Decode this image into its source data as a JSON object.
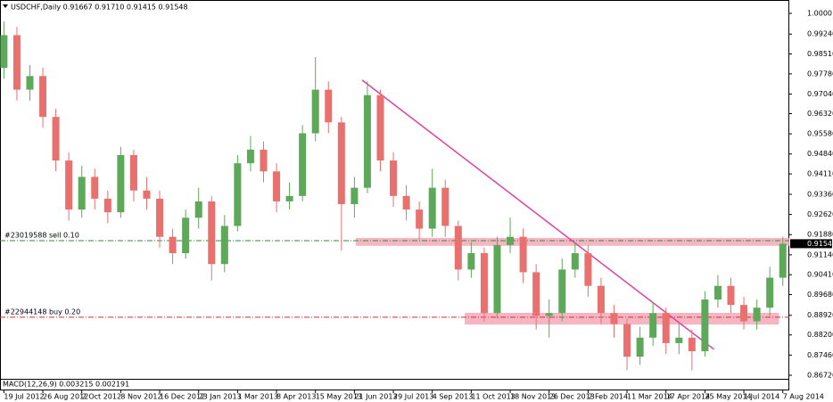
{
  "chart_data": {
    "type": "candlestick",
    "title": "USDCHF,Daily  0.91667 0.91710 0.91415 0.91548",
    "indicator_label": "MACD(12,26,9) 0.003215 0.002191",
    "up_color": "#5ea85a",
    "down_color": "#e8716f",
    "open": [
      0.98,
      0.992,
      0.972,
      0.977,
      0.962,
      0.946,
      0.928,
      0.94,
      0.932,
      0.927,
      0.948,
      0.935,
      0.932,
      0.918,
      0.912,
      0.925,
      0.931,
      0.908,
      0.922,
      0.945,
      0.95,
      0.942,
      0.931,
      0.933,
      0.956,
      0.972,
      0.96,
      0.93,
      0.936,
      0.97,
      0.946,
      0.933,
      0.928,
      0.921,
      0.936,
      0.922,
      0.906,
      0.912,
      0.89,
      0.915,
      0.918,
      0.905,
      0.889,
      0.89,
      0.906,
      0.912,
      0.9,
      0.89,
      0.886,
      0.874,
      0.881,
      0.89,
      0.879,
      0.881,
      0.876,
      0.895,
      0.9,
      0.893,
      0.887,
      0.892,
      0.903
    ],
    "high": [
      0.997,
      0.995,
      0.981,
      0.98,
      0.965,
      0.949,
      0.944,
      0.943,
      0.935,
      0.951,
      0.95,
      0.94,
      0.935,
      0.921,
      0.928,
      0.936,
      0.933,
      0.926,
      0.948,
      0.955,
      0.953,
      0.945,
      0.938,
      0.959,
      0.984,
      0.975,
      0.962,
      0.94,
      0.975,
      0.972,
      0.949,
      0.937,
      0.931,
      0.943,
      0.939,
      0.924,
      0.916,
      0.914,
      0.918,
      0.925,
      0.921,
      0.908,
      0.895,
      0.91,
      0.916,
      0.915,
      0.903,
      0.893,
      0.888,
      0.885,
      0.894,
      0.892,
      0.886,
      0.884,
      0.898,
      0.904,
      0.903,
      0.896,
      0.895,
      0.907,
      0.918
    ],
    "low": [
      0.976,
      0.968,
      0.968,
      0.958,
      0.942,
      0.924,
      0.925,
      0.928,
      0.923,
      0.925,
      0.931,
      0.928,
      0.914,
      0.908,
      0.91,
      0.921,
      0.902,
      0.905,
      0.92,
      0.942,
      0.938,
      0.927,
      0.928,
      0.931,
      0.953,
      0.956,
      0.913,
      0.925,
      0.934,
      0.942,
      0.929,
      0.924,
      0.917,
      0.918,
      0.918,
      0.902,
      0.903,
      0.887,
      0.888,
      0.912,
      0.901,
      0.884,
      0.881,
      0.887,
      0.903,
      0.896,
      0.886,
      0.881,
      0.869,
      0.871,
      0.878,
      0.875,
      0.875,
      0.869,
      0.874,
      0.892,
      0.89,
      0.884,
      0.884,
      0.889,
      0.9
    ],
    "close": [
      0.992,
      0.972,
      0.977,
      0.962,
      0.946,
      0.928,
      0.94,
      0.932,
      0.927,
      0.948,
      0.935,
      0.932,
      0.918,
      0.912,
      0.925,
      0.931,
      0.908,
      0.922,
      0.945,
      0.95,
      0.942,
      0.931,
      0.933,
      0.956,
      0.972,
      0.96,
      0.93,
      0.936,
      0.97,
      0.946,
      0.933,
      0.928,
      0.921,
      0.936,
      0.922,
      0.906,
      0.912,
      0.89,
      0.915,
      0.918,
      0.905,
      0.889,
      0.89,
      0.906,
      0.912,
      0.9,
      0.89,
      0.886,
      0.874,
      0.881,
      0.89,
      0.879,
      0.881,
      0.876,
      0.895,
      0.9,
      0.893,
      0.887,
      0.892,
      0.903,
      0.91548
    ],
    "xlim": [
      -0.3,
      60.5
    ],
    "ylim": [
      0.86589,
      1.00327
    ],
    "xticks": [
      {
        "value": 0,
        "label": "19 Jul 2012"
      },
      {
        "value": 3,
        "label": "26 Aug 2012"
      },
      {
        "value": 6,
        "label": "2 Oct 2012"
      },
      {
        "value": 9,
        "label": "8 Nov 2012"
      },
      {
        "value": 12,
        "label": "16 Dec 2012"
      },
      {
        "value": 15,
        "label": "23 Jan 2013"
      },
      {
        "value": 18,
        "label": "1 Mar 2013"
      },
      {
        "value": 21,
        "label": "8 Apr 2013"
      },
      {
        "value": 24,
        "label": "15 May 2013"
      },
      {
        "value": 27,
        "label": "21 Jun 2013"
      },
      {
        "value": 30,
        "label": "29 Jul 2013"
      },
      {
        "value": 33,
        "label": "4 Sep 2013"
      },
      {
        "value": 36,
        "label": "11 Oct 2013"
      },
      {
        "value": 39,
        "label": "18 Nov 2013"
      },
      {
        "value": 42,
        "label": "26 Dec 2013"
      },
      {
        "value": 45,
        "label": "2 Feb 2014"
      },
      {
        "value": 48,
        "label": "11 Mar 2014"
      },
      {
        "value": 51,
        "label": "17 Apr 2014"
      },
      {
        "value": 54,
        "label": "25 May 2014"
      },
      {
        "value": 57,
        "label": "1 Jul 2014"
      },
      {
        "value": 60,
        "label": "7 Aug 2014"
      }
    ],
    "yticks": [
      {
        "value": 1.0,
        "label": "1.0000"
      },
      {
        "value": 0.9924,
        "label": "0.99240"
      },
      {
        "value": 0.9851,
        "label": "0.98510"
      },
      {
        "value": 0.9778,
        "label": "0.97780"
      },
      {
        "value": 0.9704,
        "label": "0.97040"
      },
      {
        "value": 0.9632,
        "label": "0.96320"
      },
      {
        "value": 0.9558,
        "label": "0.95580"
      },
      {
        "value": 0.9484,
        "label": "0.94840"
      },
      {
        "value": 0.9411,
        "label": "0.94110"
      },
      {
        "value": 0.9336,
        "label": "0.93360"
      },
      {
        "value": 0.9262,
        "label": "0.92620"
      },
      {
        "value": 0.9188,
        "label": "0.91880"
      },
      {
        "value": 0.9114,
        "label": "0.91140"
      },
      {
        "value": 0.9041,
        "label": "0.90410"
      },
      {
        "value": 0.8968,
        "label": "0.89680"
      },
      {
        "value": 0.8892,
        "label": "0.88920"
      },
      {
        "value": 0.882,
        "label": "0.88200"
      },
      {
        "value": 0.8746,
        "label": "0.87460"
      },
      {
        "value": 0.8672,
        "label": "0.86720"
      }
    ],
    "levels": [
      {
        "label": "#23019588 sell 0.10",
        "price": 0.9166,
        "color": "#3a8a3a"
      },
      {
        "label": "#22944148 buy 0.20",
        "price": 0.8885,
        "color": "#d03030"
      }
    ],
    "zones": [
      {
        "x": [
          27.1,
          60.5
        ],
        "price": [
          0.9147,
          0.9176
        ],
        "color": "#f4a8b8"
      },
      {
        "x": [
          35.5,
          59.7
        ],
        "price": [
          0.8858,
          0.8901
        ],
        "color": "#f4a8b8"
      }
    ],
    "trendline": {
      "x": [
        27.6,
        54.7
      ],
      "price": [
        0.9755,
        0.8767
      ],
      "color": "#e040a0"
    }
  }
}
